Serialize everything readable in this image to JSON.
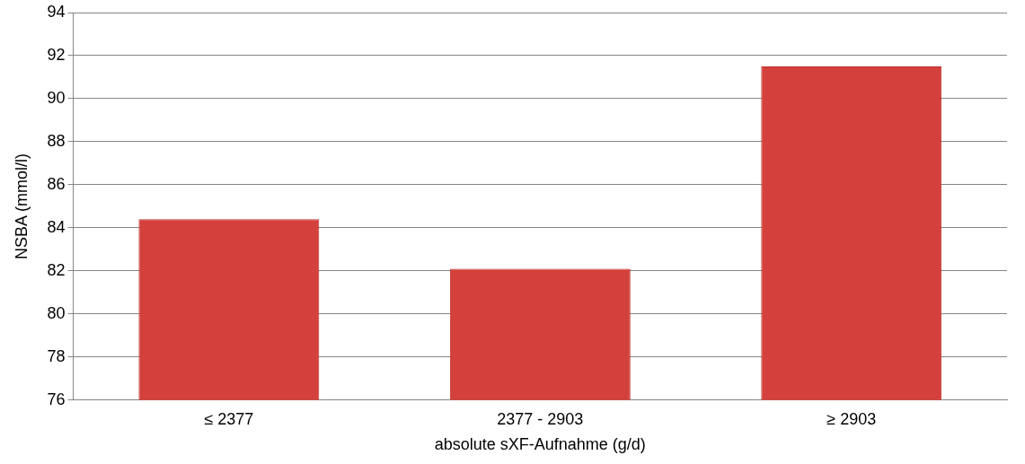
{
  "chart_data": {
    "type": "bar",
    "xlabel": "absolute sXF-Aufnahme (g/d)",
    "ylabel": "NSBA (mmol/l)",
    "categories": [
      "≤ 2377",
      "2377 - 2903",
      "≥ 2903"
    ],
    "values": [
      84.4,
      82.1,
      91.5
    ],
    "color": "#d4403b",
    "ylim": [
      76,
      94
    ],
    "yticks": [
      76,
      78,
      80,
      82,
      84,
      86,
      88,
      90,
      92,
      94
    ],
    "grid": "y",
    "legend": false
  }
}
